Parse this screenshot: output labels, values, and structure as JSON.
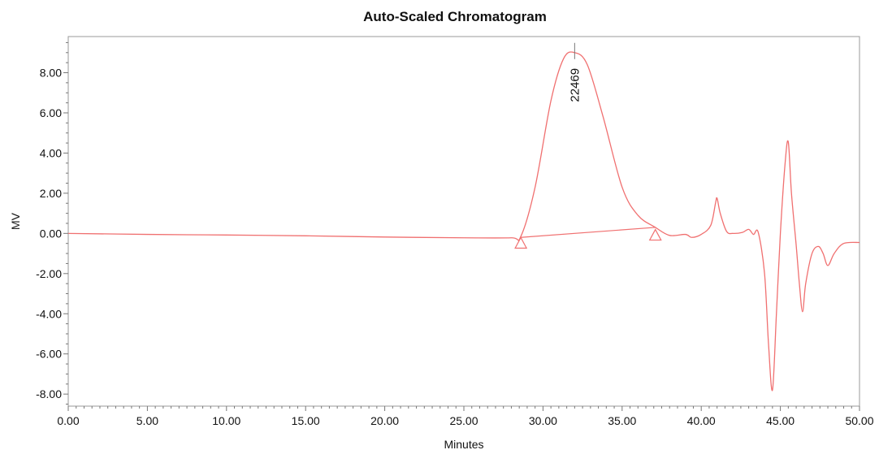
{
  "chart_data": {
    "type": "line",
    "title": "Auto-Scaled Chromatogram",
    "xlabel": "Minutes",
    "ylabel": "MV",
    "xlim": [
      0,
      50
    ],
    "ylim": [
      -8.6,
      9.8
    ],
    "grid": false,
    "line_color": "#f07070",
    "x_ticks": [
      "0.00",
      "5.00",
      "10.00",
      "15.00",
      "20.00",
      "25.00",
      "30.00",
      "35.00",
      "40.00",
      "45.00",
      "50.00"
    ],
    "y_ticks": [
      "8.00",
      "6.00",
      "4.00",
      "2.00",
      "0.00",
      "-2.00",
      "-4.00",
      "-6.00",
      "-8.00"
    ],
    "series": [
      {
        "x": [
          0,
          5,
          10,
          15,
          20,
          25,
          28,
          28.6,
          29.5,
          30.5,
          31.3,
          32.0,
          32.8,
          33.8,
          35.0,
          36.0,
          37.1,
          38.0,
          39.0,
          39.4,
          40.0,
          40.6,
          40.9,
          41.0,
          41.2,
          41.6,
          42.0,
          42.6,
          43.0,
          43.3,
          43.6,
          44.0,
          44.25,
          44.5,
          44.75,
          45.0,
          45.3,
          45.5,
          45.7,
          46.0,
          46.2,
          46.4,
          46.6,
          47.0,
          47.4,
          47.7,
          48.0,
          48.4,
          49.0,
          50.0
        ],
        "y": [
          0.0,
          -0.05,
          -0.08,
          -0.12,
          -0.18,
          -0.22,
          -0.22,
          -0.15,
          2.3,
          6.6,
          8.7,
          9.0,
          8.4,
          5.8,
          2.3,
          0.9,
          0.3,
          -0.1,
          -0.05,
          -0.2,
          -0.05,
          0.4,
          1.5,
          1.75,
          1.0,
          0.1,
          0.0,
          0.05,
          0.2,
          -0.05,
          0.05,
          -2.0,
          -5.5,
          -7.8,
          -4.0,
          0.0,
          3.5,
          4.55,
          2.0,
          -0.6,
          -2.5,
          -3.9,
          -2.5,
          -1.0,
          -0.65,
          -1.0,
          -1.6,
          -1.0,
          -0.5,
          -0.45
        ]
      }
    ],
    "baseline": {
      "x": [
        28.6,
        37.1
      ],
      "y": [
        -0.2,
        0.3
      ]
    },
    "peak_markers": [
      {
        "x": 28.6,
        "y": -0.45
      },
      {
        "x": 37.1,
        "y": -0.05
      }
    ],
    "peak_annotation": {
      "x": 32.0,
      "y": 9.0,
      "text": "22469"
    }
  }
}
